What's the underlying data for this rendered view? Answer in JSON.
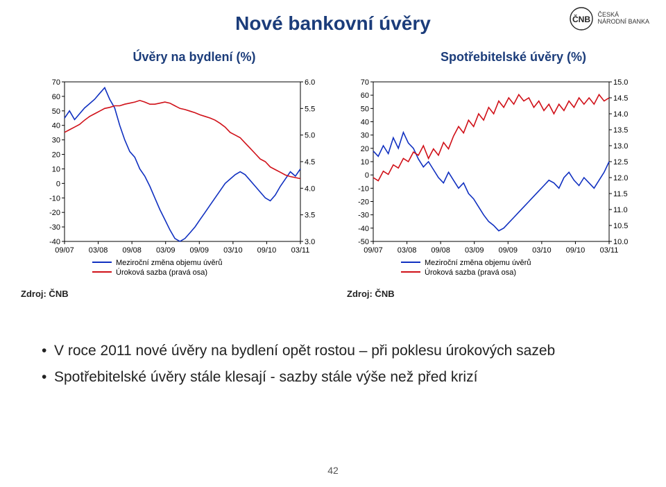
{
  "title": "Nové bankovní úvěry",
  "logo": {
    "org": "ČNB",
    "sub1": "ČESKÁ",
    "sub2": "NÁRODNÍ BANKA"
  },
  "pageNumber": "42",
  "source": "Zdroj: ČNB",
  "bullets": [
    "V roce 2011 nové úvěry na bydlení opět rostou – při poklesu úrokových sazeb",
    "Spotřebitelské úvěry stále klesají  - sazby stále výše než před krizí"
  ],
  "common": {
    "xTicks": [
      "09/07",
      "03/08",
      "09/08",
      "03/09",
      "09/09",
      "03/10",
      "09/10",
      "03/11"
    ],
    "legend1": "Meziroční změna objemu úvěrů",
    "legend2": "Úroková sazba (pravá osa)",
    "colors": {
      "line1": "#1030c0",
      "line2": "#d01018",
      "axis": "#000000",
      "grid": "#000000",
      "bg": "#ffffff"
    },
    "lineWidth": 1.6,
    "fontSize": 11
  },
  "chartLeft": {
    "subtitle": "Úvěry na bydlení (%)",
    "yLeftMin": -40,
    "yLeftMax": 70,
    "yLeftStep": 10,
    "yRightMin": 3.0,
    "yRightMax": 6.0,
    "yRightStep": 0.5,
    "seriesBlue": [
      45,
      50,
      44,
      48,
      52,
      55,
      58,
      62,
      66,
      58,
      52,
      40,
      30,
      22,
      18,
      10,
      5,
      -2,
      -10,
      -18,
      -25,
      -32,
      -38,
      -40,
      -38,
      -34,
      -30,
      -25,
      -20,
      -15,
      -10,
      -5,
      0,
      3,
      6,
      8,
      6,
      2,
      -2,
      -6,
      -10,
      -12,
      -8,
      -2,
      3,
      8,
      5,
      10
    ],
    "seriesRed": [
      5.05,
      5.1,
      5.15,
      5.2,
      5.28,
      5.35,
      5.4,
      5.45,
      5.5,
      5.52,
      5.55,
      5.55,
      5.58,
      5.6,
      5.62,
      5.65,
      5.62,
      5.58,
      5.58,
      5.6,
      5.62,
      5.6,
      5.55,
      5.5,
      5.48,
      5.45,
      5.42,
      5.38,
      5.35,
      5.32,
      5.28,
      5.22,
      5.15,
      5.05,
      5.0,
      4.95,
      4.85,
      4.75,
      4.65,
      4.55,
      4.5,
      4.4,
      4.35,
      4.3,
      4.25,
      4.22,
      4.2,
      4.18
    ]
  },
  "chartRight": {
    "subtitle": "Spotřebitelské úvěry (%)",
    "yLeftMin": -50,
    "yLeftMax": 70,
    "yLeftStep": 10,
    "yRightMin": 10.0,
    "yRightMax": 15.0,
    "yRightStep": 0.5,
    "seriesBlue": [
      18,
      14,
      22,
      16,
      28,
      20,
      32,
      24,
      20,
      12,
      6,
      10,
      4,
      -2,
      -6,
      2,
      -4,
      -10,
      -6,
      -14,
      -18,
      -24,
      -30,
      -35,
      -38,
      -42,
      -40,
      -36,
      -32,
      -28,
      -24,
      -20,
      -16,
      -12,
      -8,
      -4,
      -6,
      -10,
      -2,
      2,
      -4,
      -8,
      -2,
      -6,
      -10,
      -4,
      2,
      10
    ],
    "seriesRed": [
      12.0,
      11.9,
      12.2,
      12.1,
      12.4,
      12.3,
      12.6,
      12.5,
      12.8,
      12.7,
      13.0,
      12.6,
      12.9,
      12.7,
      13.1,
      12.9,
      13.3,
      13.6,
      13.4,
      13.8,
      13.6,
      14.0,
      13.8,
      14.2,
      14.0,
      14.4,
      14.2,
      14.5,
      14.3,
      14.6,
      14.4,
      14.5,
      14.2,
      14.4,
      14.1,
      14.3,
      14.0,
      14.3,
      14.1,
      14.4,
      14.2,
      14.5,
      14.3,
      14.5,
      14.3,
      14.6,
      14.4,
      14.5
    ]
  }
}
